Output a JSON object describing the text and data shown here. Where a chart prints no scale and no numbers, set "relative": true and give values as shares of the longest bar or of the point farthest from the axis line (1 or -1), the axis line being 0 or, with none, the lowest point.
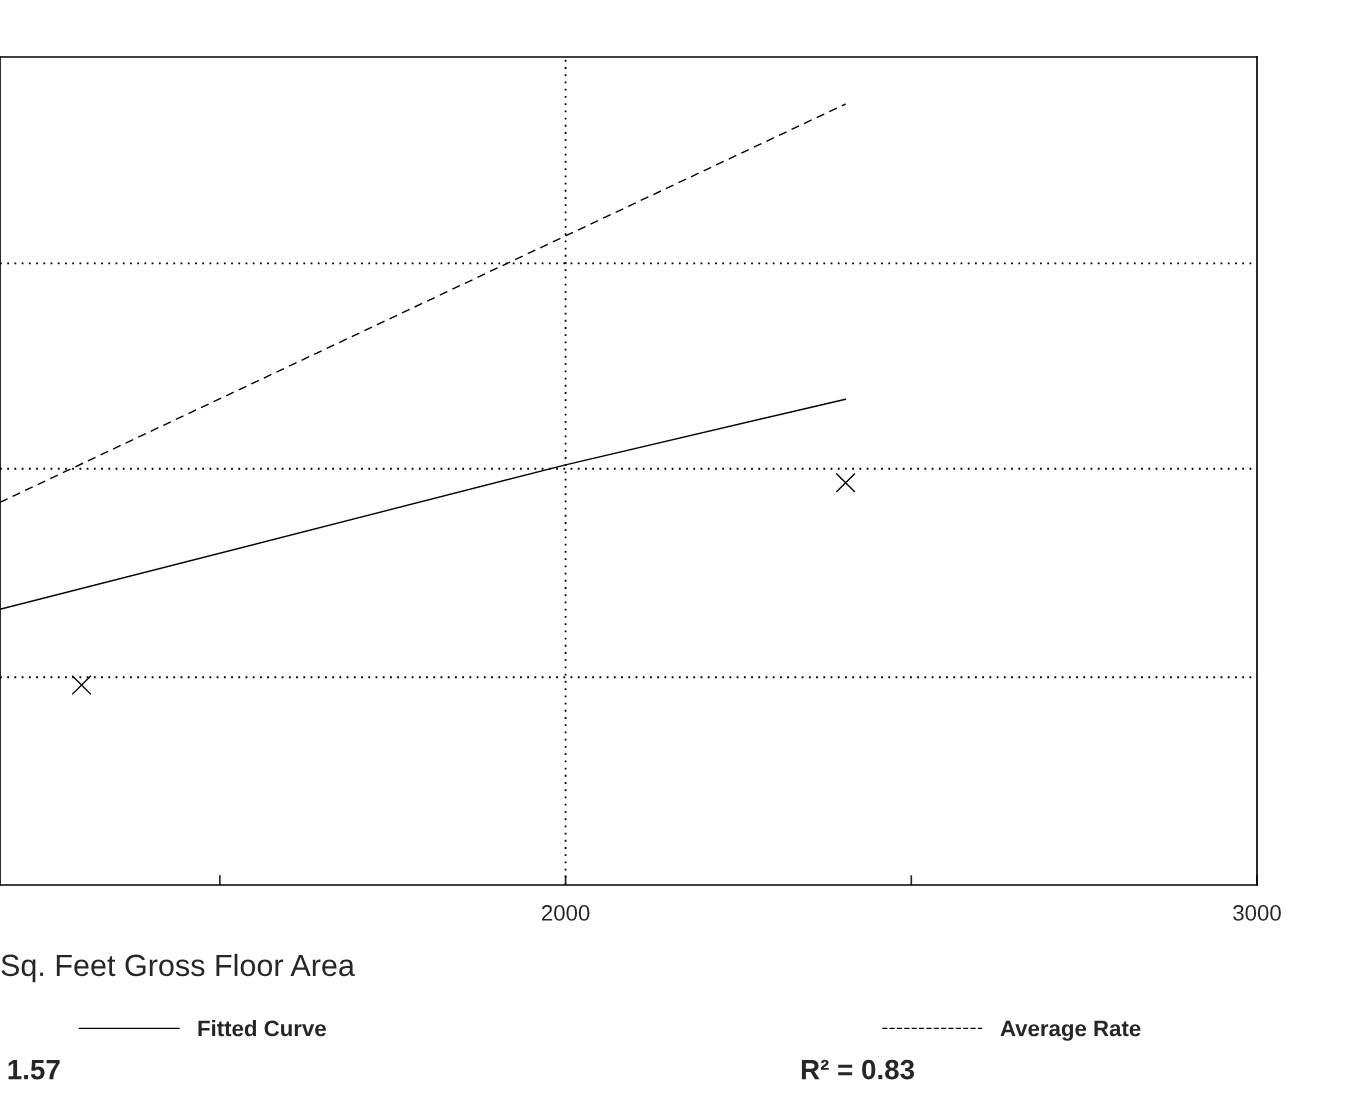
{
  "chart_data": {
    "type": "line",
    "xlabel": "Sq. Feet Gross Floor Area",
    "relative": true,
    "xlim": [
      1182,
      3000
    ],
    "xticks": [
      {
        "value": 1500,
        "label": null
      },
      2000,
      {
        "value": 2500,
        "label": null
      },
      3000
    ],
    "series": [
      {
        "name": "Fitted Curve",
        "color": "#000000",
        "line_style": "solid",
        "x": [
          1182,
          2000,
          2405
        ],
        "values": [
          0.353,
          0.538,
          0.622
        ]
      },
      {
        "name": "Average Rate",
        "color": "#000000",
        "line_style": "dashed",
        "x": [
          1182,
          2405
        ],
        "values": [
          0.49,
          1.0
        ]
      },
      {
        "type": "scatter",
        "color": "#000000",
        "marker": "cross",
        "x": [
          1300,
          2405
        ],
        "values": [
          0.256,
          0.515
        ]
      }
    ],
    "ref_lines": [
      {
        "axis": "x",
        "value": 2000,
        "line_style": "dotted"
      },
      {
        "axis": "y",
        "value": 0.266,
        "line_style": "dotted"
      },
      {
        "axis": "y",
        "value": 0.533,
        "line_style": "dotted"
      },
      {
        "axis": "y",
        "value": 0.796,
        "line_style": "dotted"
      }
    ],
    "legend": "bottom",
    "annotations": [
      "1.57",
      "R² = 0.83"
    ]
  }
}
